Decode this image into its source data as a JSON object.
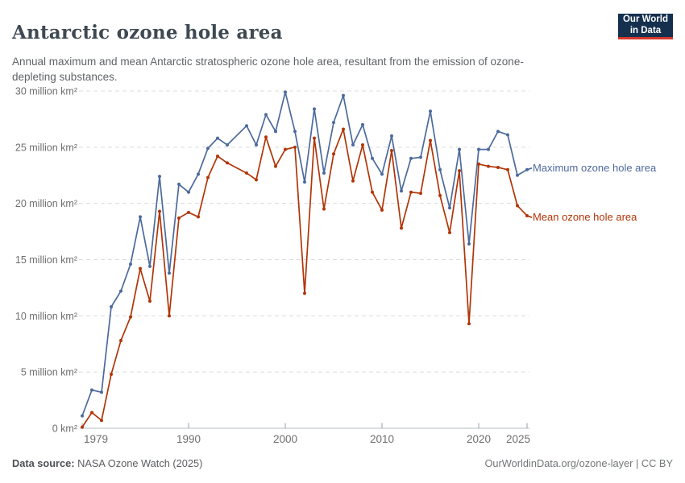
{
  "header": {
    "title": "Antarctic ozone hole area",
    "subtitle": "Annual maximum and mean Antarctic stratospheric ozone hole area, resultant from the emission of ozone-depleting substances.",
    "logo_line1": "Our World",
    "logo_line2": "in Data"
  },
  "footer": {
    "source_label": "Data source:",
    "source_value": " NASA Ozone Watch (2025)",
    "credit": "OurWorldinData.org/ozone-layer | CC BY"
  },
  "colors": {
    "max_series": "#4C6A9C",
    "mean_series": "#B13507",
    "gridline": "#dcdcdc",
    "axis_line": "#c4c9cd",
    "tick_mark": "#9aa0a5",
    "axis_text": "#6e6e6e",
    "logo_bg": "#15304F",
    "logo_accent": "#D7382C"
  },
  "chart_data": {
    "type": "line",
    "title": "Antarctic ozone hole area",
    "xlabel": "",
    "ylabel": "",
    "grid": "horizontal-dashed",
    "legend_position": "right-of-line-ends",
    "ylim": [
      0,
      30
    ],
    "yticks": [
      0,
      5,
      10,
      15,
      20,
      25,
      30
    ],
    "ytick_labels": [
      "0 km²",
      "5 million km²",
      "10 million km²",
      "15 million km²",
      "20 million km²",
      "25 million km²",
      "30 million km²"
    ],
    "xticks": [
      1979,
      1990,
      2000,
      2010,
      2020,
      2025
    ],
    "years": [
      1979,
      1980,
      1981,
      1982,
      1983,
      1984,
      1985,
      1986,
      1987,
      1988,
      1989,
      1990,
      1991,
      1992,
      1993,
      1994,
      1995,
      1996,
      1997,
      1998,
      1999,
      2000,
      2001,
      2002,
      2003,
      2004,
      2005,
      2006,
      2007,
      2008,
      2009,
      2010,
      2011,
      2012,
      2013,
      2014,
      2015,
      2016,
      2017,
      2018,
      2019,
      2020,
      2021,
      2022,
      2023,
      2024,
      2025
    ],
    "unit": "million km²",
    "series": [
      {
        "name": "Maximum ozone hole area",
        "color": "#4C6A9C",
        "values": [
          1.1,
          3.4,
          3.2,
          10.8,
          12.2,
          14.6,
          18.8,
          14.4,
          22.4,
          13.8,
          21.7,
          21.0,
          22.6,
          24.9,
          25.8,
          25.2,
          null,
          26.9,
          25.2,
          27.9,
          26.4,
          29.9,
          26.4,
          21.9,
          28.4,
          22.7,
          27.2,
          29.6,
          25.2,
          27.0,
          24.0,
          22.6,
          26.0,
          21.1,
          24.0,
          24.1,
          28.2,
          23.0,
          19.6,
          24.8,
          16.4,
          24.8,
          24.8,
          26.4,
          26.1,
          22.5,
          23.0
        ]
      },
      {
        "name": "Mean ozone hole area",
        "color": "#B13507",
        "values": [
          0.1,
          1.4,
          0.7,
          4.8,
          7.8,
          9.9,
          14.2,
          11.3,
          19.3,
          10.0,
          18.7,
          19.2,
          18.8,
          22.3,
          24.2,
          23.6,
          null,
          22.7,
          22.1,
          25.9,
          23.3,
          24.8,
          25.0,
          12.0,
          25.8,
          19.5,
          24.4,
          26.6,
          22.0,
          25.2,
          21.0,
          19.4,
          24.7,
          17.8,
          21.0,
          20.9,
          25.6,
          20.7,
          17.4,
          22.9,
          9.3,
          23.5,
          23.3,
          23.2,
          23.0,
          19.8,
          18.9
        ]
      }
    ]
  }
}
